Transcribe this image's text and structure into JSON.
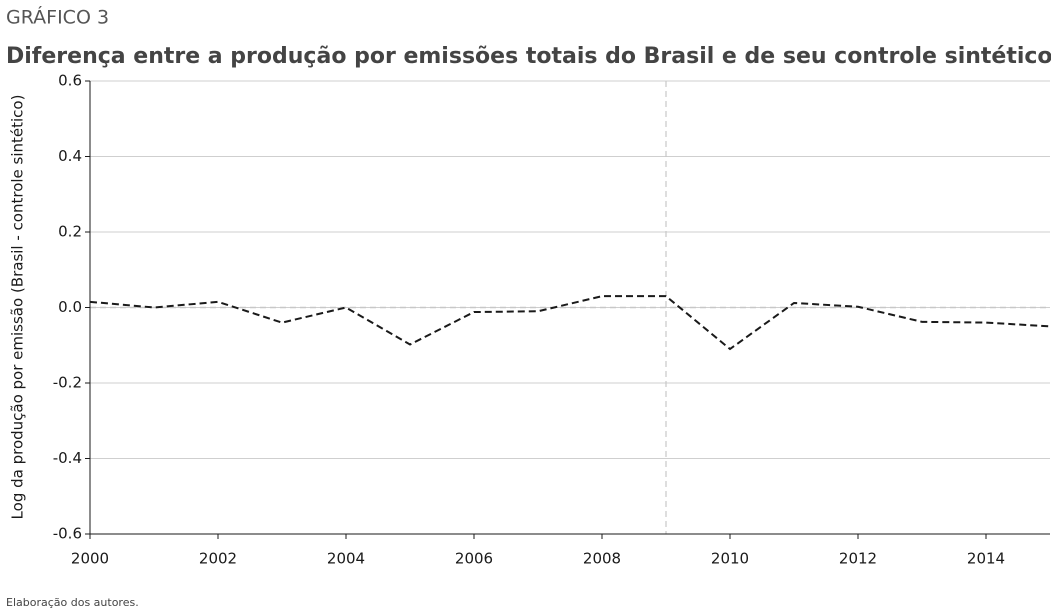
{
  "chart_data": {
    "type": "line",
    "kicker": "GRÁFICO 3",
    "title": "Diferença entre a produção por emissões totais do Brasil e de seu controle sintético",
    "y_label": "Log da produção por emissão (Brasil - controle sintético)",
    "note": "Elaboração dos autores.",
    "x": [
      2000,
      2001,
      2002,
      2003,
      2004,
      2005,
      2006,
      2007,
      2008,
      2009,
      2010,
      2011,
      2012,
      2013,
      2014,
      2015
    ],
    "series": [
      {
        "color": "#1a1a1a",
        "values": [
          0.015,
          0.0,
          0.015,
          -0.04,
          0.0,
          -0.098,
          -0.012,
          -0.01,
          0.03,
          0.03,
          -0.11,
          0.012,
          0.002,
          -0.038,
          -0.04,
          -0.05
        ]
      }
    ],
    "xlim": [
      2000,
      2015
    ],
    "xticks": [
      2000,
      2002,
      2004,
      2006,
      2008,
      2010,
      2012,
      2014
    ],
    "ylim": [
      -0.6,
      0.6
    ],
    "yticks": [
      -0.6,
      -0.4,
      -0.2,
      {
        "value": 0,
        "label": "0.0"
      },
      0.2,
      0.4,
      0.6
    ],
    "grid": true,
    "vline": 2009,
    "hline": 0
  }
}
